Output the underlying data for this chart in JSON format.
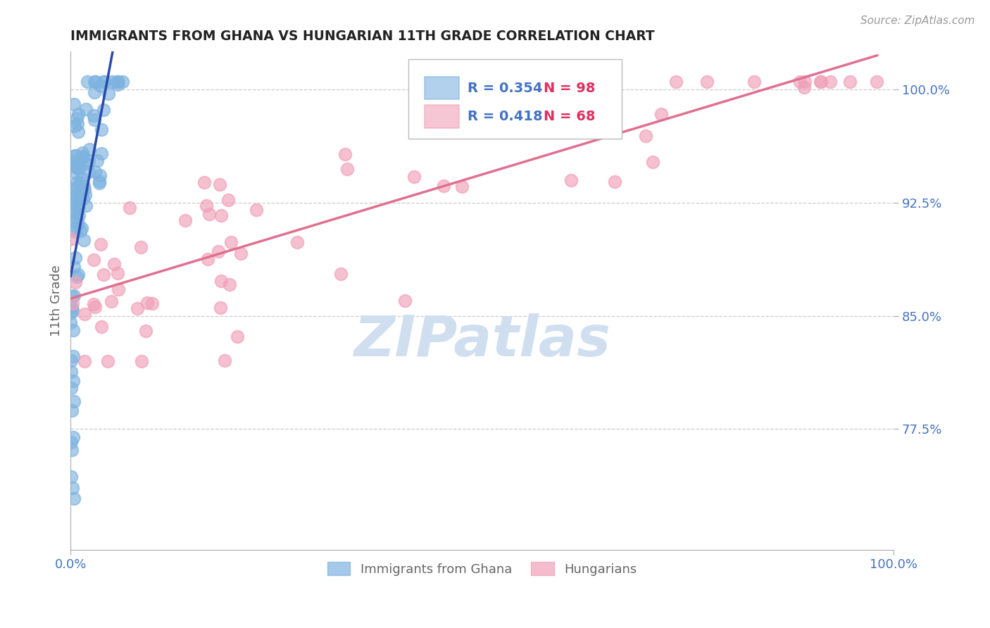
{
  "title": "IMMIGRANTS FROM GHANA VS HUNGARIAN 11TH GRADE CORRELATION CHART",
  "source_text": "Source: ZipAtlas.com",
  "ylabel": "11th Grade",
  "x_tick_labels": [
    "0.0%",
    "100.0%"
  ],
  "y_tick_labels": [
    "77.5%",
    "85.0%",
    "92.5%",
    "100.0%"
  ],
  "xlim": [
    0.0,
    1.0
  ],
  "ylim": [
    0.695,
    1.025
  ],
  "yticks": [
    0.775,
    0.85,
    0.925,
    1.0
  ],
  "legend_r_n": [
    {
      "R": "0.354",
      "N": "98"
    },
    {
      "R": "0.418",
      "N": "68"
    }
  ],
  "blue_scatter_color": "#7eb3e0",
  "pink_scatter_color": "#f0a0b8",
  "blue_line_color": "#2a4aab",
  "pink_line_color": "#e07090",
  "grid_color": "#cccccc",
  "title_color": "#222222",
  "axis_label_color": "#666666",
  "tick_label_color": "#4472c4",
  "watermark_color": "#d0dff0",
  "blue_R": 0.354,
  "blue_N": 98,
  "pink_R": 0.418,
  "pink_N": 68
}
